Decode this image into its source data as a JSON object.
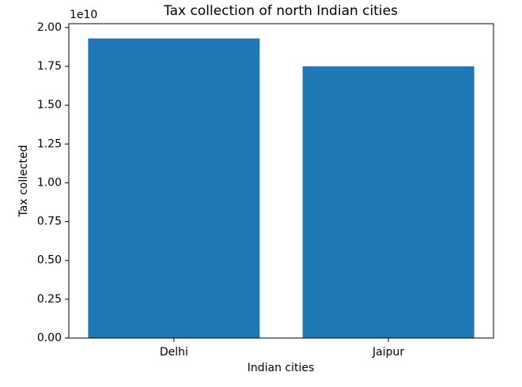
{
  "chart_data": {
    "type": "bar",
    "title": "Tax collection of north Indian cities",
    "x_label": "Indian cities",
    "y_label": "Tax collected",
    "y_offset_label": "1e10",
    "categories": [
      "Delhi",
      "Jaipur"
    ],
    "values": [
      1.93,
      1.75
    ],
    "color": "#1f77b4",
    "ylim": [
      0,
      2.025
    ],
    "yticks": [
      {
        "value": 0,
        "label": "0.00"
      },
      {
        "value": 0.25,
        "label": "0.25"
      },
      {
        "value": 0.5,
        "label": "0.50"
      },
      {
        "value": 0.75,
        "label": "0.75"
      },
      {
        "value": 1,
        "label": "1.00"
      },
      {
        "value": 1.25,
        "label": "1.25"
      },
      {
        "value": 1.5,
        "label": "1.50"
      },
      {
        "value": 1.75,
        "label": "1.75"
      },
      {
        "value": 2,
        "label": "2.00"
      }
    ],
    "grid": false
  }
}
